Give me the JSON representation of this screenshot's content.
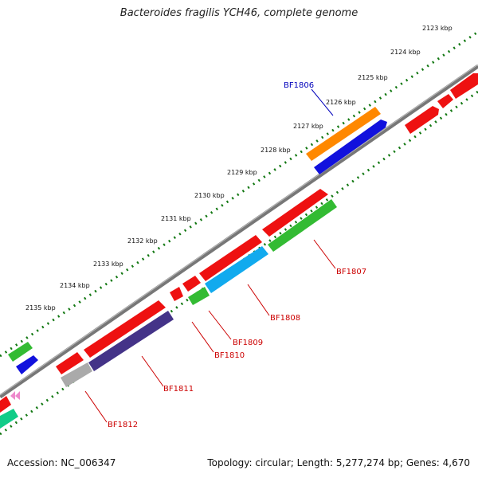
{
  "title": "Bacteroides fragilis YCH46, complete genome",
  "footer": {
    "accession": "Accession: NC_006347",
    "summary": "Topology: circular; Length: 5,277,274 bp; Genes: 4,670"
  },
  "kbp_ticks": [
    "2123 kbp",
    "2124 kbp",
    "2125 kbp",
    "2126 kbp",
    "2127 kbp",
    "2128 kbp",
    "2129 kbp",
    "2130 kbp",
    "2131 kbp",
    "2132 kbp",
    "2133 kbp",
    "2134 kbp",
    "2135 kbp"
  ],
  "gene_labels": {
    "bf1806": "BF1806",
    "bf1807": "BF1807",
    "bf1808": "BF1808",
    "bf1809": "BF1809",
    "bf1810": "BF1810",
    "bf1811": "BF1811",
    "bf1812": "BF1812"
  },
  "colors": {
    "red": "#ee1111",
    "blue": "#1111dd",
    "orange": "#ff8800",
    "green": "#33bb33",
    "cyan": "#11aaee",
    "indigo": "#443388",
    "gray": "#aaaaaa",
    "teal": "#11cc88",
    "pink": "#ee88cc",
    "backbone": "#777777",
    "dots": "#117711",
    "label_blue": "#0000bb",
    "label_red": "#cc0000"
  }
}
